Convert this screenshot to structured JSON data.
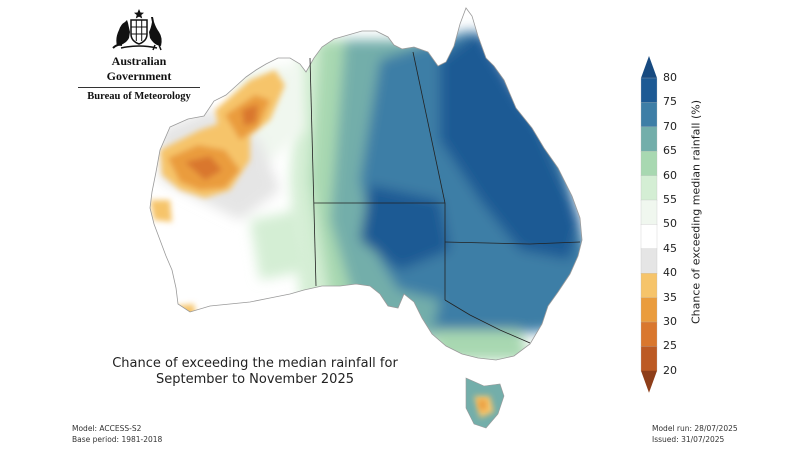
{
  "header": {
    "government": "Australian Government",
    "agency": "Bureau of Meteorology"
  },
  "map": {
    "title_line1": "Chance of exceeding the median rainfall for",
    "title_line2": "September to November 2025",
    "variable": "Chance of exceeding median rainfall",
    "region": "Australia"
  },
  "colorbar": {
    "title": "Chance of exceeding median rainfall (%)",
    "ticks": [
      "80",
      "75",
      "70",
      "65",
      "60",
      "55",
      "50",
      "45",
      "40",
      "35",
      "30",
      "25",
      "20"
    ],
    "bands": [
      {
        "range": "75-80",
        "color": "#1d5a94"
      },
      {
        "range": "70-75",
        "color": "#3e7ea6"
      },
      {
        "range": "65-70",
        "color": "#73aeaa"
      },
      {
        "range": "60-65",
        "color": "#a8d8b1"
      },
      {
        "range": "55-60",
        "color": "#d4eed4"
      },
      {
        "range": "50-55",
        "color": "#f0f7ef"
      },
      {
        "range": "45-50",
        "color": "#ffffff"
      },
      {
        "range": "40-45",
        "color": "#e5e5e5"
      },
      {
        "range": "35-40",
        "color": "#f6c46a"
      },
      {
        "range": "30-35",
        "color": "#ea9c3d"
      },
      {
        "range": "25-30",
        "color": "#d9772e"
      },
      {
        "range": "20-25",
        "color": "#bc5a24"
      }
    ],
    "top_arrow_color": "#174a80",
    "bottom_arrow_color": "#8e3e1a"
  },
  "footer": {
    "model": "Model: ACCESS-S2",
    "base_period": "Base period: 1981-2018",
    "model_run": "Model run: 28/07/2025",
    "issued": "Issued: 31/07/2025"
  }
}
